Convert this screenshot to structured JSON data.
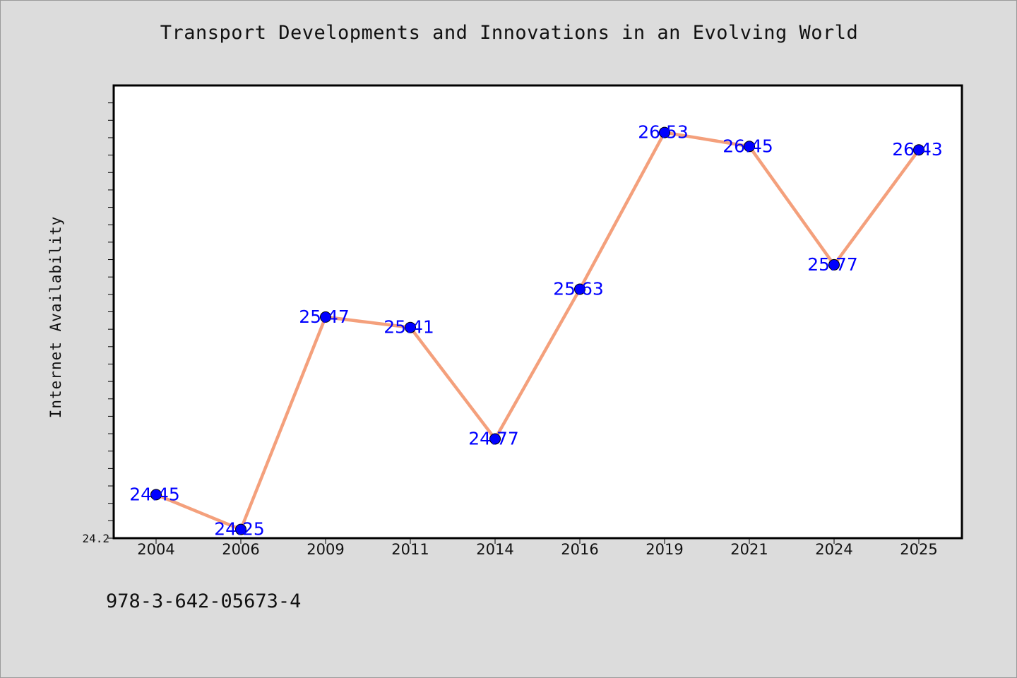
{
  "chart_data": {
    "type": "line",
    "title": "Transport Developments and Innovations in an Evolving World",
    "xlabel": "",
    "ylabel": "Internet Availability",
    "categories": [
      "2004",
      "2006",
      "2009",
      "2011",
      "2014",
      "2016",
      "2019",
      "2021",
      "2024",
      "2025"
    ],
    "series": [
      {
        "values": [
          24.45,
          24.25,
          25.47,
          25.41,
          24.77,
          25.63,
          26.53,
          26.45,
          25.77,
          26.43
        ]
      }
    ],
    "y_tick_labels": [
      "24.2"
    ],
    "ylim": [
      24.2,
      26.8
    ],
    "grid": false,
    "line_color": "#f4a07c",
    "marker_color": "#0000ff",
    "label_color": "#0000ff"
  },
  "footer": {
    "identifier": "978-3-642-05673-4"
  }
}
